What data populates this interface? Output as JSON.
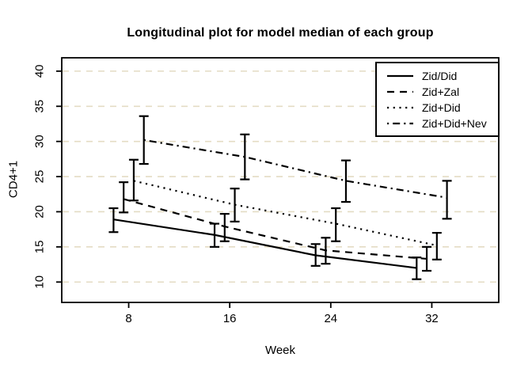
{
  "window": {
    "background": "#ffffff"
  },
  "chart_data": {
    "type": "line",
    "title": "Longitudinal plot for model median of each group",
    "xlabel": "Week",
    "ylabel": "CD4+1",
    "x_ticks": [
      "8",
      "16",
      "24",
      "32"
    ],
    "x_tick_values": [
      8,
      16,
      24,
      32
    ],
    "y_ticks": [
      "10",
      "15",
      "20",
      "25",
      "30",
      "35",
      "40"
    ],
    "y_tick_values": [
      10,
      15,
      20,
      25,
      30,
      35,
      40
    ],
    "xlim": [
      2.7,
      37.3
    ],
    "ylim": [
      7.1,
      41.9
    ],
    "grid": {
      "horizontal": true,
      "style": "dashed",
      "color": "#e4dcc4"
    },
    "line_color": "#000000",
    "legend_position": "top-right",
    "error_bars": true,
    "series": [
      {
        "name": "Zid/Did",
        "linetype": "solid",
        "x": [
          6.8,
          14.8,
          22.8,
          30.8
        ],
        "median": [
          18.9,
          16.7,
          13.8,
          12.0
        ],
        "lower": [
          17.1,
          15.0,
          12.3,
          10.4
        ],
        "upper": [
          20.5,
          18.3,
          15.4,
          13.5
        ]
      },
      {
        "name": "Zid+Zal",
        "linetype": "dashed",
        "x": [
          7.6,
          15.6,
          23.6,
          31.6
        ],
        "median": [
          21.8,
          17.9,
          14.5,
          13.3
        ],
        "lower": [
          19.9,
          15.8,
          12.6,
          11.6
        ],
        "upper": [
          24.2,
          19.7,
          16.3,
          15.0
        ]
      },
      {
        "name": "Zid+Did",
        "linetype": "dotted",
        "x": [
          8.4,
          16.4,
          24.4,
          32.4
        ],
        "median": [
          24.4,
          21.0,
          18.3,
          15.2
        ],
        "lower": [
          21.6,
          18.6,
          15.8,
          13.2
        ],
        "upper": [
          27.4,
          23.3,
          20.5,
          17.0
        ]
      },
      {
        "name": "Zid+Did+Nev",
        "linetype": "dashdot",
        "x": [
          9.2,
          17.2,
          25.2,
          33.2
        ],
        "median": [
          30.2,
          27.8,
          24.4,
          22.0
        ],
        "lower": [
          26.8,
          24.6,
          21.4,
          19.0
        ],
        "upper": [
          33.6,
          31.0,
          27.3,
          24.4
        ]
      }
    ]
  }
}
